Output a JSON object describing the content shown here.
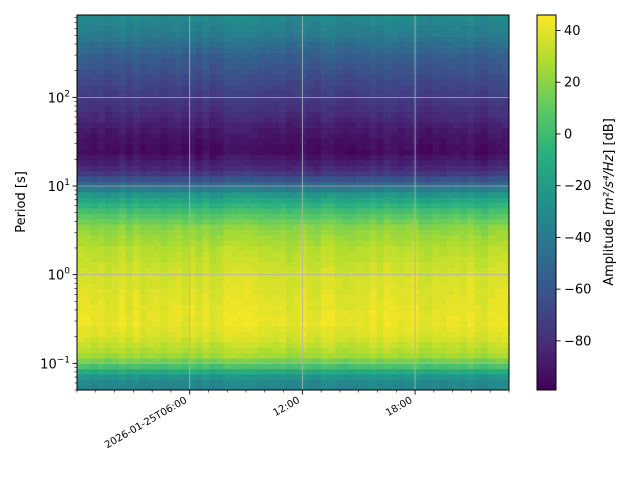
{
  "chart_data": {
    "type": "heatmap",
    "title": "",
    "xlabel": "",
    "ylabel": "Period [s]",
    "y_scale": "log",
    "ylim": [
      0.05,
      850
    ],
    "x_range_hours": [
      0,
      23
    ],
    "grid": true,
    "colormap": "viridis",
    "colorbar": {
      "label": "Amplitude [m²/s⁴/Hz] [dB]",
      "label_main": "Amplitude [",
      "label_unit": "m²/s⁴/Hz",
      "label_end": "] [dB]",
      "range": [
        -99,
        46
      ],
      "ticks": [
        40,
        20,
        0,
        -20,
        -40,
        -60,
        -80
      ],
      "tick_labels": [
        "40",
        "20",
        "0",
        "−20",
        "−40",
        "−60",
        "−80"
      ]
    },
    "x_ticks": [
      {
        "hour": 6,
        "label": "2026-01-25T06:00"
      },
      {
        "hour": 12,
        "label": "12:00"
      },
      {
        "hour": 18,
        "label": "18:00"
      }
    ],
    "y_ticks": [
      {
        "value": 0.1,
        "label_base": "10",
        "label_exp": "−1"
      },
      {
        "value": 1,
        "label_base": "10",
        "label_exp": "0"
      },
      {
        "value": 10,
        "label_base": "10",
        "label_exp": "1"
      },
      {
        "value": 100,
        "label_base": "10",
        "label_exp": "2"
      }
    ],
    "amplitude_profile": [
      {
        "period": 0.05,
        "db": -35
      },
      {
        "period": 0.065,
        "db": -30
      },
      {
        "period": 0.075,
        "db": -20
      },
      {
        "period": 0.09,
        "db": 0
      },
      {
        "period": 0.12,
        "db": 25
      },
      {
        "period": 0.2,
        "db": 38
      },
      {
        "period": 0.3,
        "db": 42
      },
      {
        "period": 0.5,
        "db": 40
      },
      {
        "period": 1.0,
        "db": 37
      },
      {
        "period": 2.0,
        "db": 30
      },
      {
        "period": 3.5,
        "db": 20
      },
      {
        "period": 5.5,
        "db": 0
      },
      {
        "period": 8.0,
        "db": -22
      },
      {
        "period": 11.0,
        "db": -55
      },
      {
        "period": 15.0,
        "db": -80
      },
      {
        "period": 25.0,
        "db": -95
      },
      {
        "period": 40.0,
        "db": -90
      },
      {
        "period": 70.0,
        "db": -80
      },
      {
        "period": 150.0,
        "db": -68
      },
      {
        "period": 300.0,
        "db": -55
      },
      {
        "period": 500.0,
        "db": -40
      },
      {
        "period": 850.0,
        "db": -30
      }
    ]
  }
}
